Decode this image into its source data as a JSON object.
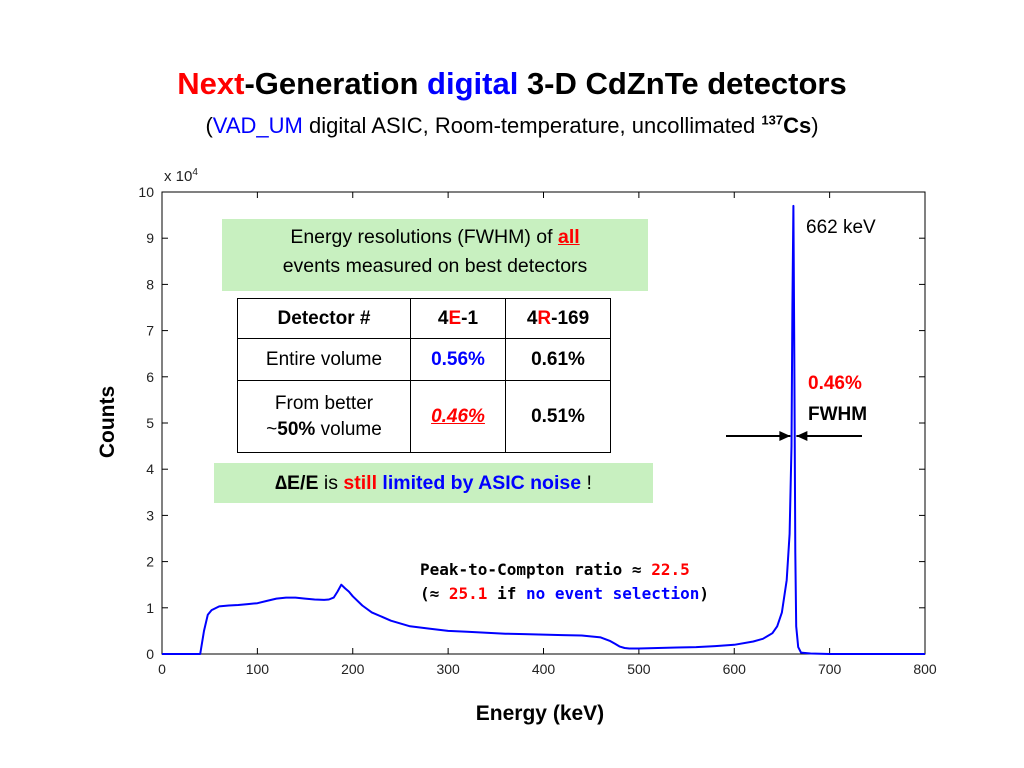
{
  "title": {
    "part1": "Next",
    "part2": "-Generation ",
    "part3": "digital",
    "part4": " 3-D CdZnTe detectors"
  },
  "subtitle": {
    "open": "(",
    "asic": "VAD_UM",
    "middle": " digital ASIC, Room-temperature, uncollimated ",
    "isotope_mass": "137",
    "isotope": "Cs",
    "close": ")"
  },
  "resolution_box": {
    "line1": "Energy resolutions (FWHM) of ",
    "line1_emph": "all",
    "line2": "events measured on best detectors"
  },
  "table": {
    "header": {
      "detector": "Detector #",
      "d1_pre": "4",
      "d1_mid": "E",
      "d1_post": "-1",
      "d2_pre": "4",
      "d2_mid": "R",
      "d2_post": "-169"
    },
    "row1": {
      "label": "Entire volume",
      "v1": "0.56%",
      "v2": "0.61%"
    },
    "row2": {
      "label_line1": "From better",
      "label_approx": "~",
      "label_bold": "50%",
      "label_rest": " volume",
      "v1": "0.46%",
      "v2": "0.51%"
    }
  },
  "note": {
    "delta": "∆E/E",
    "is": " is ",
    "still": "still",
    "limited": " limited by ASIC noise",
    "bang": " !"
  },
  "peak_to_compton": {
    "line1_text": "Peak-to-Compton ratio ≈ ",
    "line1_value": "22.5",
    "line2_open": "(≈ ",
    "line2_value": "25.1",
    "line2_if": " if ",
    "line2_condition": "no event selection",
    "line2_close": ")"
  },
  "annotations": {
    "peak_label": "662 keV",
    "fwhm_value": "0.46%",
    "fwhm_label": "FWHM"
  },
  "colors": {
    "series": "#0000ff",
    "highlight_red": "#ff0000",
    "highlight_blue": "#0000ff",
    "box_green": "#c8f0c0"
  },
  "chart_data": {
    "type": "line",
    "xlabel": "Energy (keV)",
    "ylabel": "Counts",
    "y_multiplier_label": "x 10",
    "y_multiplier_exp": "4",
    "xlim": [
      0,
      800
    ],
    "ylim": [
      0,
      10
    ],
    "xticks": [
      0,
      100,
      200,
      300,
      400,
      500,
      600,
      700,
      800
    ],
    "yticks": [
      0,
      1,
      2,
      3,
      4,
      5,
      6,
      7,
      8,
      9,
      10
    ],
    "grid": false,
    "series": [
      {
        "x": [
          0,
          40,
          44,
          48,
          52,
          60,
          70,
          80,
          90,
          100,
          110,
          120,
          130,
          140,
          150,
          160,
          170,
          175,
          180,
          184,
          188,
          192,
          196,
          200,
          210,
          220,
          240,
          260,
          280,
          300,
          320,
          340,
          360,
          380,
          400,
          420,
          440,
          460,
          470,
          475,
          480,
          485,
          490,
          500,
          520,
          540,
          560,
          580,
          600,
          620,
          630,
          640,
          645,
          650,
          655,
          658,
          660,
          661,
          662,
          663,
          664,
          665,
          667,
          670,
          680,
          700,
          750,
          800
        ],
        "y": [
          0,
          0,
          0.5,
          0.85,
          0.95,
          1.03,
          1.05,
          1.06,
          1.08,
          1.1,
          1.15,
          1.2,
          1.22,
          1.22,
          1.2,
          1.18,
          1.17,
          1.18,
          1.22,
          1.35,
          1.5,
          1.42,
          1.35,
          1.25,
          1.05,
          0.9,
          0.72,
          0.6,
          0.55,
          0.5,
          0.48,
          0.46,
          0.44,
          0.43,
          0.42,
          0.41,
          0.4,
          0.36,
          0.28,
          0.22,
          0.16,
          0.13,
          0.12,
          0.12,
          0.13,
          0.14,
          0.15,
          0.17,
          0.2,
          0.27,
          0.33,
          0.45,
          0.6,
          0.9,
          1.6,
          2.6,
          4.5,
          7.5,
          9.7,
          6.5,
          2.2,
          0.6,
          0.15,
          0.03,
          0.01,
          0,
          0,
          0
        ]
      }
    ]
  }
}
